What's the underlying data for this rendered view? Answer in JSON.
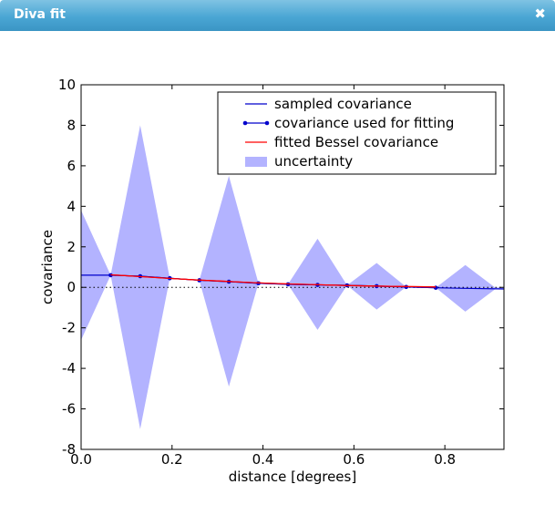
{
  "window": {
    "title": "Diva fit",
    "close_glyph": "✖"
  },
  "chart_data": {
    "type": "line",
    "xlabel": "distance [degrees]",
    "ylabel": "covariance",
    "xlim": [
      0.0,
      0.93
    ],
    "ylim": [
      -8,
      10
    ],
    "x_ticks": [
      "0.0",
      "0.2",
      "0.4",
      "0.6",
      "0.8"
    ],
    "x_tick_values": [
      0.0,
      0.2,
      0.4,
      0.6,
      0.8
    ],
    "y_ticks": [
      "-8",
      "-6",
      "-4",
      "-2",
      "0",
      "2",
      "4",
      "6",
      "8",
      "10"
    ],
    "y_tick_values": [
      -8,
      -6,
      -4,
      -2,
      0,
      2,
      4,
      6,
      8,
      10
    ],
    "zero_line": "dotted",
    "grid": false,
    "legend_position": "top-right",
    "legend": [
      {
        "label": "sampled covariance",
        "style": "line",
        "color": "#0000cc"
      },
      {
        "label": "covariance used for fitting",
        "style": "line-dots",
        "color": "#0000cc"
      },
      {
        "label": "fitted Bessel covariance",
        "style": "line",
        "color": "#ff0000"
      },
      {
        "label": "uncertainty",
        "style": "patch",
        "color": "#b3b3ff"
      }
    ],
    "series": [
      {
        "name": "sampled covariance",
        "color": "#0000cc",
        "x": [
          0.0,
          0.065,
          0.13,
          0.195,
          0.26,
          0.325,
          0.39,
          0.455,
          0.52,
          0.585,
          0.65,
          0.715,
          0.78,
          0.845,
          0.93
        ],
        "y": [
          0.6,
          0.6,
          0.55,
          0.45,
          0.35,
          0.28,
          0.2,
          0.15,
          0.12,
          0.1,
          0.06,
          0.02,
          -0.02,
          -0.05,
          -0.08
        ]
      },
      {
        "name": "covariance used for fitting",
        "color": "#0000cc",
        "x": [
          0.065,
          0.13,
          0.195,
          0.26,
          0.325,
          0.39,
          0.455,
          0.52,
          0.585,
          0.65,
          0.715,
          0.78
        ],
        "y": [
          0.6,
          0.55,
          0.45,
          0.35,
          0.28,
          0.2,
          0.15,
          0.12,
          0.1,
          0.06,
          0.02,
          -0.02
        ]
      },
      {
        "name": "fitted Bessel covariance",
        "color": "#ff0000",
        "x": [
          0.065,
          0.13,
          0.195,
          0.26,
          0.325,
          0.39,
          0.455,
          0.52,
          0.585,
          0.65,
          0.715,
          0.78
        ],
        "y": [
          0.62,
          0.53,
          0.44,
          0.36,
          0.29,
          0.22,
          0.17,
          0.13,
          0.09,
          0.06,
          0.04,
          0.02
        ]
      }
    ],
    "uncertainty": {
      "name": "uncertainty",
      "color": "#b3b3ff",
      "x": [
        0.0,
        0.065,
        0.13,
        0.195,
        0.26,
        0.325,
        0.39,
        0.455,
        0.52,
        0.585,
        0.65,
        0.715,
        0.78,
        0.845,
        0.91,
        0.93
      ],
      "upper": [
        3.8,
        0.6,
        8.0,
        0.45,
        0.35,
        5.5,
        0.2,
        0.15,
        2.4,
        0.1,
        1.2,
        0.02,
        -0.02,
        1.1,
        0.0,
        0.0
      ],
      "lower": [
        -2.6,
        0.6,
        -7.0,
        0.45,
        0.35,
        -4.9,
        0.2,
        0.15,
        -2.1,
        0.1,
        -1.1,
        0.02,
        -0.02,
        -1.2,
        -0.1,
        -0.1
      ]
    }
  }
}
